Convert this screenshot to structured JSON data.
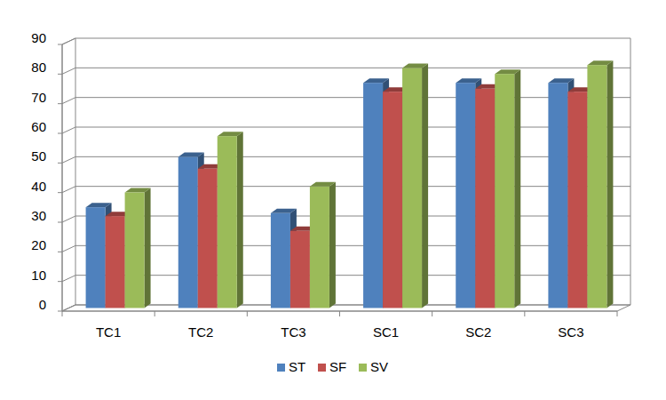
{
  "chart_data": {
    "type": "bar",
    "categories": [
      "TC1",
      "TC2",
      "TC3",
      "SC1",
      "SC2",
      "SC3"
    ],
    "series": [
      {
        "name": "ST",
        "color": "#4f81bd",
        "values": [
          34,
          51,
          32,
          76,
          76,
          76
        ]
      },
      {
        "name": "SF",
        "color": "#c0504d",
        "values": [
          31,
          47,
          26,
          73,
          74,
          73
        ]
      },
      {
        "name": "SV",
        "color": "#9bbb59",
        "values": [
          39,
          58,
          41,
          81,
          79,
          82
        ]
      }
    ],
    "ylim": [
      0,
      90
    ],
    "yticks": [
      0,
      10,
      20,
      30,
      40,
      50,
      60,
      70,
      80,
      90
    ],
    "grid": true,
    "legend": "bottom"
  }
}
